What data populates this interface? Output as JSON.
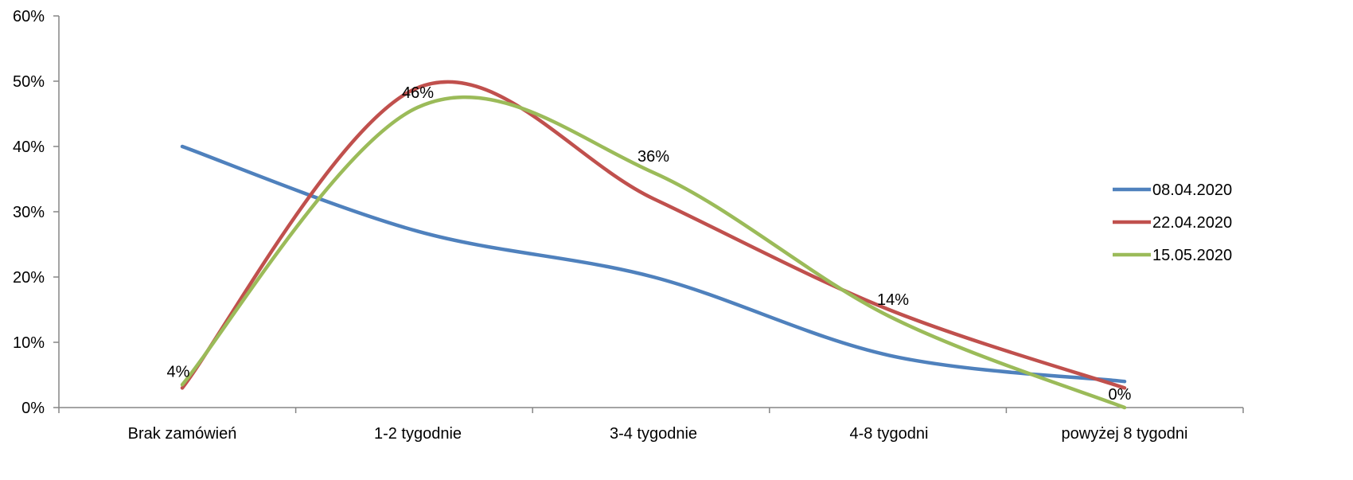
{
  "chart_data": {
    "type": "line",
    "categories": [
      "Brak zamówień",
      "1-2 tygodnie",
      "3-4 tygodnie",
      "4-8 tygodni",
      "powyżej 8 tygodni"
    ],
    "series": [
      {
        "name": "08.04.2020",
        "color": "#4F81BD",
        "values": [
          0.4,
          0.27,
          0.2,
          0.08,
          0.04
        ]
      },
      {
        "name": "22.04.2020",
        "color": "#C0504D",
        "values": [
          0.03,
          0.49,
          0.32,
          0.15,
          0.03
        ]
      },
      {
        "name": "15.05.2020",
        "color": "#9BBB59",
        "values": [
          0.035,
          0.46,
          0.36,
          0.14,
          0.0
        ]
      }
    ],
    "data_labels": [
      {
        "text": "4%",
        "series": 2,
        "index": 0
      },
      {
        "text": "46%",
        "series": 2,
        "index": 1
      },
      {
        "text": "36%",
        "series": 2,
        "index": 2
      },
      {
        "text": "14%",
        "series": 2,
        "index": 3
      },
      {
        "text": "0%",
        "series": 2,
        "index": 4
      }
    ],
    "ylim": [
      0,
      0.6
    ],
    "yticks": [
      "0%",
      "10%",
      "20%",
      "30%",
      "40%",
      "50%",
      "60%"
    ],
    "grid": false,
    "legend_position": "right",
    "title": "",
    "xlabel": "",
    "ylabel": ""
  }
}
